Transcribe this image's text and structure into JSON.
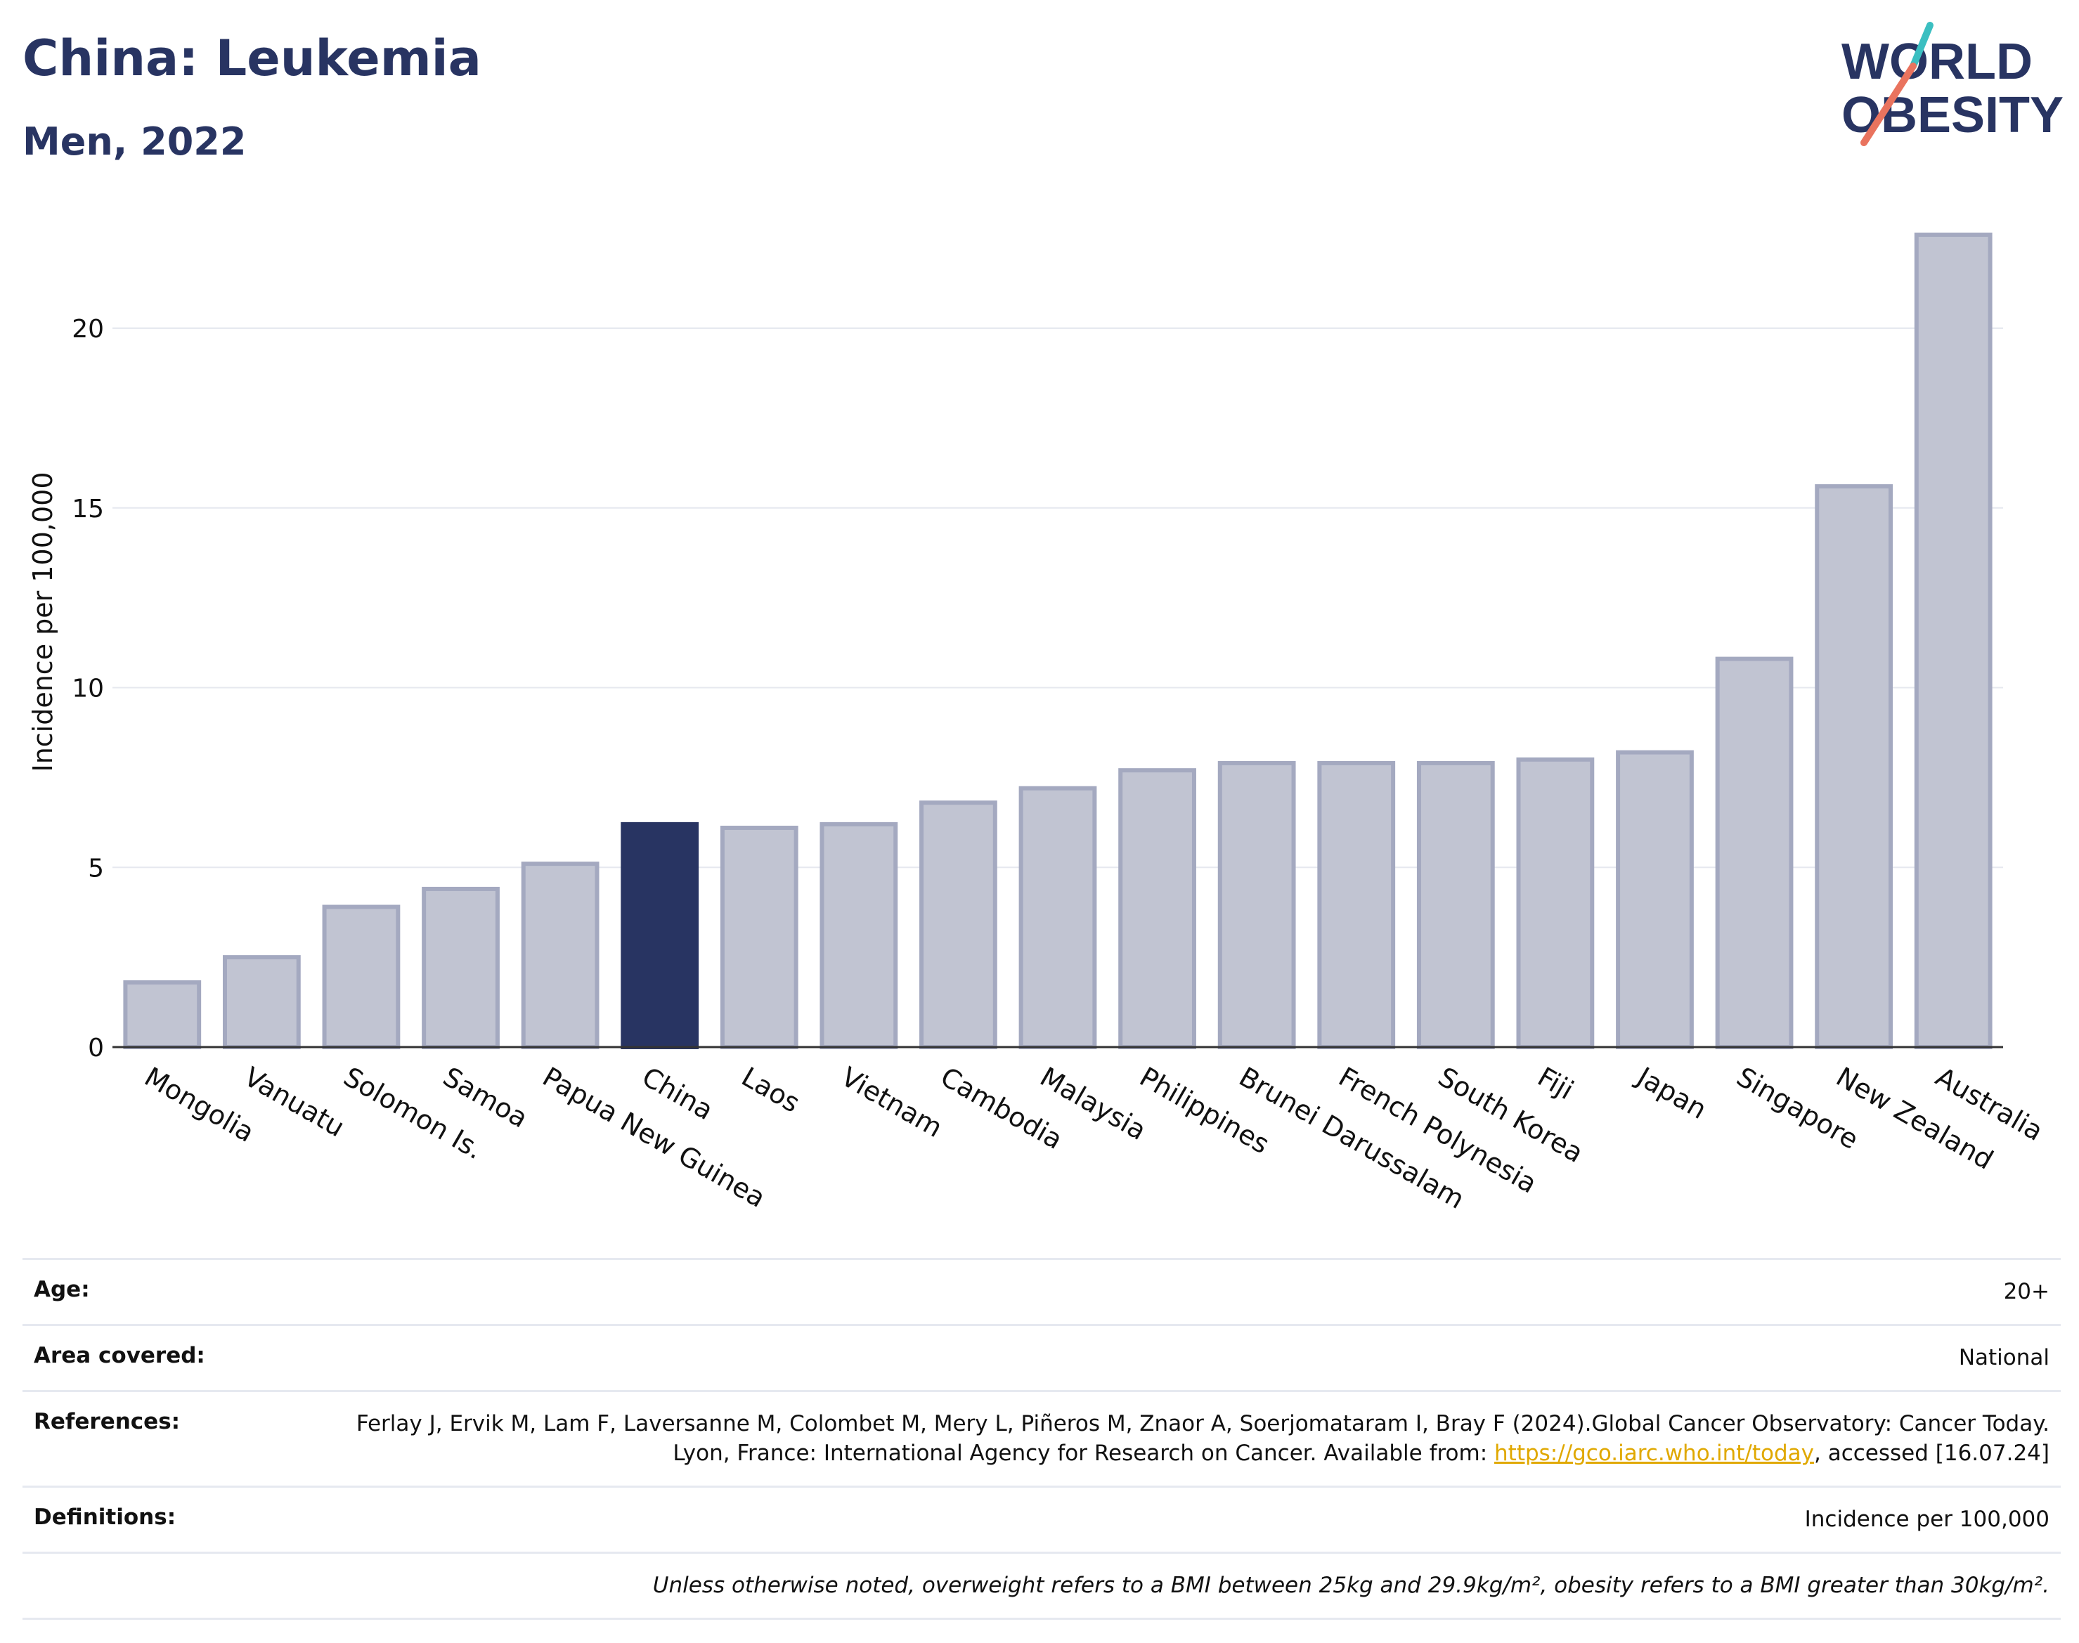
{
  "header": {
    "title": "China: Leukemia",
    "subtitle": "Men, 2022",
    "logo_line1": "WORLD",
    "logo_line2": "OBESITY"
  },
  "colors": {
    "highlight": "#283462",
    "bar": "#c1c4d2",
    "bar_stroke": "#a4a9c0",
    "logo_text": "#283462",
    "logo_teal": "#3bbfc1",
    "logo_coral": "#e9735e",
    "link": "#e0a800"
  },
  "chart_data": {
    "type": "bar",
    "ylabel": "Incidence per 100,000",
    "ylim": [
      0,
      23
    ],
    "yticks": [
      0,
      5,
      10,
      15,
      20
    ],
    "grid": true,
    "highlight_category": "China",
    "categories": [
      "Mongolia",
      "Vanuatu",
      "Solomon Is.",
      "Samoa",
      "Papua New Guinea",
      "China",
      "Laos",
      "Vietnam",
      "Cambodia",
      "Malaysia",
      "Philippines",
      "Brunei Darussalam",
      "French Polynesia",
      "South Korea",
      "Fiji",
      "Japan",
      "Singapore",
      "New Zealand",
      "Australia"
    ],
    "values": [
      1.8,
      2.5,
      3.9,
      4.4,
      5.1,
      6.2,
      6.1,
      6.2,
      6.8,
      7.2,
      7.7,
      7.9,
      7.9,
      7.9,
      8.0,
      8.2,
      10.8,
      15.6,
      22.6
    ]
  },
  "info": [
    {
      "label": "Age:",
      "value": "20+"
    },
    {
      "label": "Area covered:",
      "value": "National"
    },
    {
      "label": "References:",
      "value": "Ferlay J, Ervik M, Lam F, Laversanne M, Colombet M, Mery L, Piñeros M, Znaor A, Soerjomataram I, Bray F (2024).Global Cancer Observatory: Cancer Today. Lyon, France: International Agency for Research on Cancer. Available from: ",
      "link": "https://gco.iarc.who.int/today",
      "value_after": ", accessed [16.07.24]"
    },
    {
      "label": "Definitions:",
      "value": "Incidence per 100,000"
    }
  ],
  "footnote": "Unless otherwise noted, overweight refers to a BMI between 25kg and 29.9kg/m², obesity refers to a BMI greater than 30kg/m²."
}
